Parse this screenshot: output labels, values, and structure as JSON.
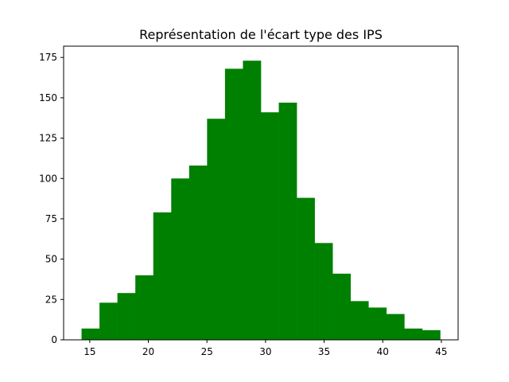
{
  "chart_data": {
    "type": "bar",
    "title": "Représentation de l'écart type des IPS",
    "xlabel": "",
    "ylabel": "",
    "bin_edges": [
      14.3,
      15.83,
      17.36,
      18.89,
      20.42,
      21.95,
      23.48,
      25.01,
      26.54,
      28.07,
      29.6,
      31.13,
      32.66,
      34.19,
      35.72,
      37.25,
      38.78,
      40.31,
      41.84,
      43.37,
      44.9
    ],
    "values": [
      7,
      23,
      29,
      40,
      79,
      100,
      108,
      137,
      168,
      173,
      141,
      147,
      88,
      60,
      41,
      24,
      20,
      16,
      7,
      6
    ],
    "xlim": [
      12.77,
      46.43
    ],
    "ylim": [
      0,
      182
    ],
    "x_ticks": [
      15,
      20,
      25,
      30,
      35,
      40,
      45
    ],
    "y_ticks": [
      0,
      25,
      50,
      75,
      100,
      125,
      150,
      175
    ],
    "bar_color": "#008000",
    "grid": false,
    "legend": "none"
  }
}
